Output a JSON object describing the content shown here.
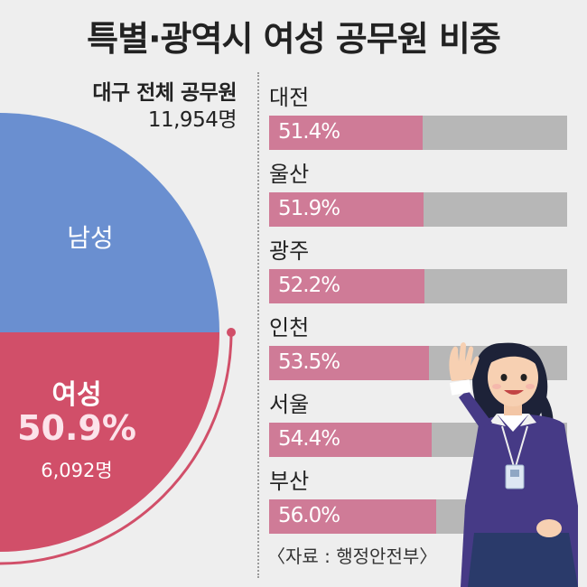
{
  "title": "특별·광역시 여성 공무원 비중",
  "total": {
    "label": "대구 전체 공무원",
    "count": "11,954명"
  },
  "pie": {
    "male_label": "남성",
    "female_label": "여성",
    "female_pct": "50.9%",
    "female_count": "6,092명"
  },
  "chart_data": [
    {
      "type": "pie",
      "title": "",
      "categories": [
        "남성",
        "여성"
      ],
      "values": [
        49.1,
        50.9
      ],
      "counts": {
        "여성": 6092,
        "total": 11954
      },
      "colors": [
        "#6a8fd0",
        "#d14f69"
      ]
    },
    {
      "type": "bar",
      "orientation": "horizontal",
      "categories": [
        "대전",
        "울산",
        "광주",
        "인천",
        "서울",
        "부산"
      ],
      "values": [
        51.4,
        51.9,
        52.2,
        53.5,
        54.4,
        56.0
      ],
      "labels": [
        "51.4%",
        "51.9%",
        "52.2%",
        "53.5%",
        "54.4%",
        "56.0%"
      ],
      "colors": {
        "fill": "#cf7b97",
        "track": "#b7b7b7"
      }
    }
  ],
  "source": "〈자료 : 행정안전부〉"
}
